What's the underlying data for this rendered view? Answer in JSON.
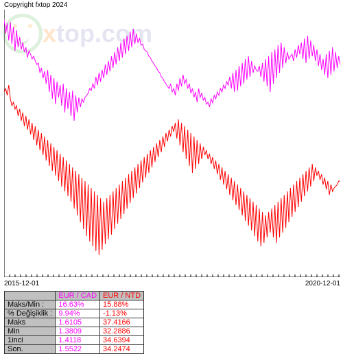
{
  "copyright": "Copyright fxtop 2024",
  "watermark": {
    "brand": "xtop.com"
  },
  "chart": {
    "type": "line",
    "background_color": "#ffffff",
    "axis_color": "#000000",
    "x_start_label": "2015-12-01",
    "x_end_label": "2020-12-01",
    "series": [
      {
        "name": "EUR / CAD",
        "color": "#ff00ff",
        "stroke_width": 1,
        "points": [
          15,
          35,
          20,
          45,
          18,
          50,
          25,
          60,
          30,
          55,
          40,
          58,
          48,
          62,
          55,
          70,
          60,
          65,
          72,
          68,
          75,
          80,
          78,
          92,
          85,
          100,
          90,
          108,
          88,
          120,
          95,
          130,
          100,
          138,
          105,
          128,
          110,
          140,
          108,
          150,
          115,
          145,
          120,
          155,
          118,
          162,
          125,
          150,
          128,
          142,
          130,
          135,
          128,
          125,
          122,
          115,
          118,
          108,
          115,
          98,
          110,
          92,
          105,
          88,
          100,
          80,
          95,
          75,
          90,
          68,
          85,
          62,
          80,
          55,
          75,
          48,
          70,
          42,
          65,
          38,
          60,
          32,
          55,
          28,
          50,
          35,
          48,
          42,
          52,
          50,
          58,
          60,
          62,
          68,
          70,
          75,
          78,
          82,
          85,
          90,
          92,
          98,
          100,
          105,
          108,
          112,
          115,
          108,
          120,
          115,
          125,
          108,
          118,
          100,
          112,
          95,
          108,
          102,
          115,
          108,
          122,
          115,
          128,
          120,
          135,
          115,
          128,
          122,
          132,
          128,
          138,
          135,
          142,
          130,
          136,
          125,
          130,
          120,
          125,
          115,
          120,
          110,
          115,
          105,
          110,
          98,
          115,
          92,
          120,
          88,
          118,
          82,
          112,
          78,
          108,
          72,
          102,
          68,
          98,
          75,
          92,
          82,
          88,
          90,
          82,
          98,
          78,
          105,
          72,
          112,
          68,
          120,
          62,
          108,
          58,
          100,
          52,
          92,
          48,
          85,
          55,
          78,
          62,
          72,
          68,
          65,
          75,
          58,
          70,
          52,
          65,
          48,
          72,
          42,
          78,
          38,
          72,
          45,
          68,
          52,
          75,
          58,
          82,
          65,
          88,
          72,
          95,
          65,
          100,
          60,
          95,
          55,
          90,
          62,
          85,
          68,
          80
        ]
      },
      {
        "name": "EUR / NTD",
        "color": "#ff0000",
        "stroke_width": 1,
        "points": [
          120,
          115,
          125,
          110,
          130,
          140,
          135,
          145,
          140,
          155,
          145,
          162,
          150,
          170,
          155,
          175,
          160,
          182,
          165,
          190,
          170,
          198,
          175,
          205,
          180,
          212,
          185,
          220,
          190,
          228,
          195,
          235,
          200,
          242,
          205,
          250,
          210,
          258,
          215,
          265,
          220,
          272,
          225,
          280,
          230,
          290,
          235,
          300,
          240,
          310,
          245,
          320,
          250,
          330,
          255,
          338,
          260,
          345,
          265,
          352,
          270,
          358,
          275,
          350,
          280,
          342,
          275,
          335,
          270,
          328,
          265,
          320,
          260,
          312,
          255,
          305,
          250,
          298,
          245,
          290,
          240,
          282,
          235,
          275,
          230,
          268,
          225,
          260,
          220,
          252,
          215,
          245,
          210,
          238,
          205,
          230,
          200,
          222,
          195,
          215,
          190,
          208,
          185,
          200,
          180,
          192,
          175,
          185,
          170,
          178,
          165,
          188,
          160,
          198,
          165,
          208,
          170,
          218,
          175,
          228,
          180,
          238,
          185,
          232,
          190,
          225,
          195,
          218,
          200,
          212,
          205,
          218,
          210,
          225,
          215,
          232,
          220,
          240,
          225,
          248,
          230,
          255,
          235,
          262,
          240,
          270,
          245,
          278,
          250,
          285,
          255,
          292,
          260,
          300,
          265,
          308,
          270,
          315,
          275,
          322,
          280,
          330,
          285,
          338,
          290,
          345,
          295,
          340,
          300,
          332,
          295,
          325,
          290,
          332,
          285,
          340,
          280,
          332,
          275,
          325,
          270,
          318,
          265,
          310,
          260,
          302,
          255,
          295,
          250,
          288,
          245,
          280,
          240,
          272,
          235,
          265,
          230,
          258,
          225,
          250,
          230,
          242,
          235,
          248,
          240,
          255,
          245,
          262,
          250,
          270,
          255,
          265,
          260,
          258,
          255,
          250,
          250
        ]
      }
    ]
  },
  "table": {
    "header_bg": "#c0c0c0",
    "rows": [
      {
        "label": "",
        "v1": "EUR / CAD",
        "v2": "EUR / NTD"
      },
      {
        "label": "Maks/Min :",
        "v1": "16.63%",
        "v2": "15.88%"
      },
      {
        "label": "% Değişiklik :",
        "v1": "9.94%",
        "v2": "-1.13%"
      },
      {
        "label": "Maks",
        "v1": "1.6105",
        "v2": "37.4166"
      },
      {
        "label": "Min",
        "v1": "1.3809",
        "v2": "32.2886"
      },
      {
        "label": "1inci",
        "v1": "1.4118",
        "v2": "34.6394"
      },
      {
        "label": "Son.",
        "v1": "1.5522",
        "v2": "34.2474"
      }
    ]
  }
}
